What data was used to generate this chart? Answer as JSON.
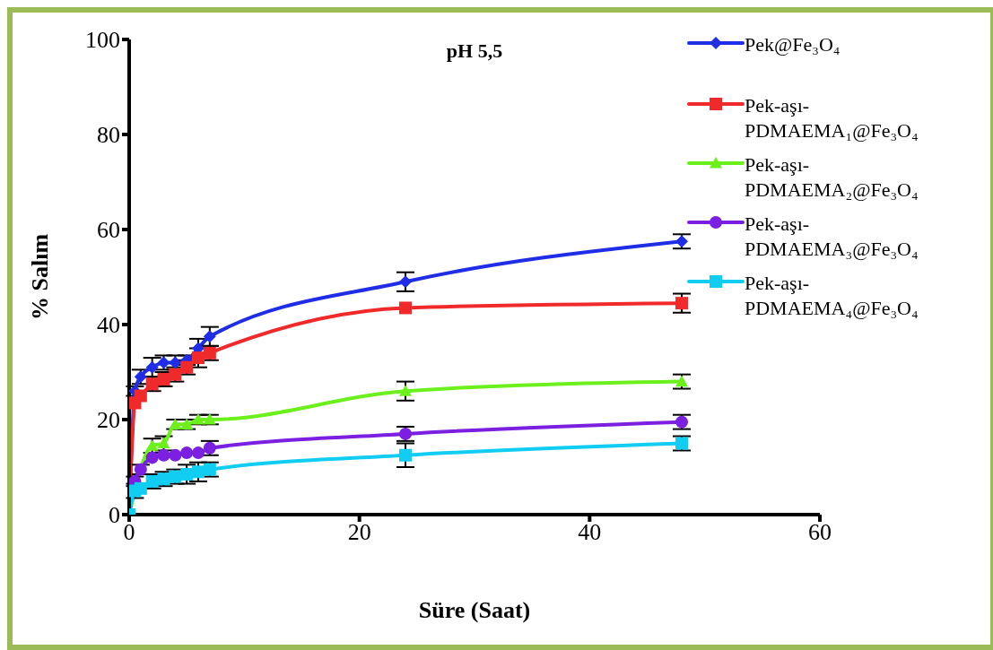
{
  "chart_data": {
    "type": "line",
    "title": "pH 5,5",
    "xlabel": "Süre (Saat)",
    "ylabel": "% Salım",
    "x": [
      0,
      0.5,
      1,
      2,
      3,
      4,
      5,
      6,
      7,
      24,
      48
    ],
    "series": [
      {
        "name": "Pek@Fe₃O₄",
        "color": "#1f2ee6",
        "marker": "diamond",
        "values": [
          0,
          26,
          29,
          31,
          32,
          32,
          32.5,
          35,
          37.5,
          49,
          57.5
        ],
        "errors": [
          null,
          1,
          1.5,
          2,
          1.5,
          1.5,
          1,
          2,
          2,
          2,
          1.5
        ]
      },
      {
        "name": "Pek-aşı-PDMAEMA₁@Fe₃O₄",
        "color": "#f02a2a",
        "marker": "square",
        "values": [
          0,
          23.5,
          25,
          27.5,
          28.5,
          29.5,
          31,
          33,
          34,
          43.5,
          44.5
        ],
        "errors": [
          null,
          null,
          null,
          1.5,
          1.5,
          1.5,
          1.5,
          2,
          1.5,
          null,
          2
        ]
      },
      {
        "name": "Pek-aşı-PDMAEMA₂@Fe₃O₄",
        "color": "#6cf01c",
        "marker": "triangle",
        "values": [
          0,
          null,
          null,
          14.5,
          15,
          19,
          19,
          20,
          20,
          26,
          28
        ],
        "errors": [
          null,
          null,
          null,
          1.5,
          1.5,
          1,
          1,
          1,
          1,
          2,
          1.5
        ]
      },
      {
        "name": "Pek-aşı-PDMAEMA₃@Fe₃O₄",
        "color": "#7b1fe0",
        "marker": "circle",
        "values": [
          0,
          7,
          9.5,
          12,
          12.5,
          12.5,
          13,
          13,
          14,
          17,
          19.5
        ],
        "errors": [
          null,
          1,
          1,
          null,
          null,
          null,
          null,
          null,
          1.5,
          1.5,
          1.5
        ]
      },
      {
        "name": "Pek-aşı-PDMAEMA₄@Fe₃O₄",
        "color": "#12cdf2",
        "marker": "square",
        "values": [
          0,
          5,
          5.5,
          7,
          7.5,
          8,
          8.5,
          9,
          9.5,
          12.5,
          15
        ],
        "errors": [
          null,
          1.5,
          null,
          1.5,
          1.5,
          1.5,
          2,
          2,
          1.5,
          2.5,
          1.5
        ]
      }
    ],
    "xlim": [
      0,
      60
    ],
    "xticks": [
      0,
      20,
      40,
      60
    ],
    "ylim": [
      0,
      100
    ],
    "yticks": [
      0,
      20,
      40,
      60,
      80,
      100
    ],
    "grid": false,
    "legend": "right",
    "line_style": "solid"
  }
}
